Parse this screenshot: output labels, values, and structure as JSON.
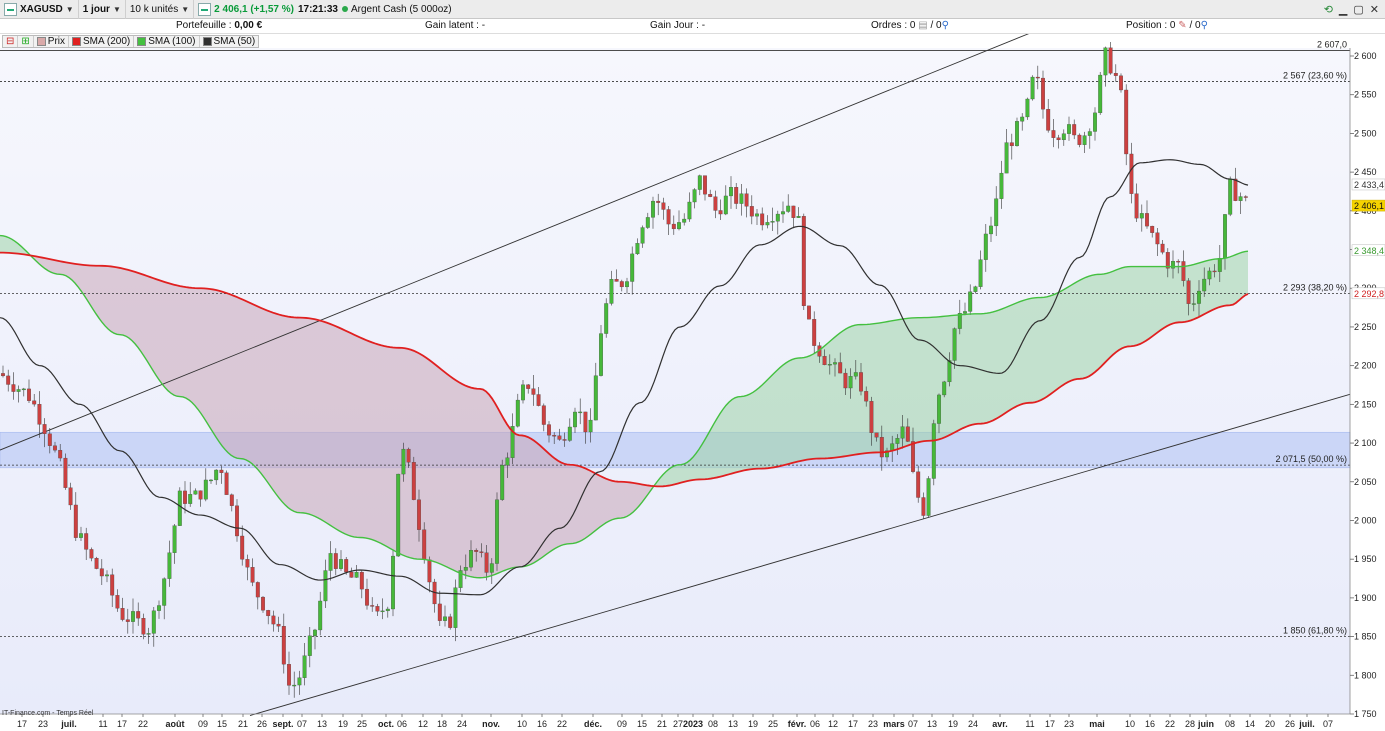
{
  "toolbar": {
    "symbol": "XAGUSD",
    "period": "1 jour",
    "units": "10 k unités",
    "price_change": "2 406,1 (+1,57 %)",
    "time": "17:21:33",
    "cash": "Argent Cash (5 000oz)"
  },
  "infobar": {
    "portefeuille_label": "Portefeuille :",
    "portefeuille_value": "0,00 €",
    "gain_latent": "Gain latent : -",
    "gain_jour": "Gain Jour : -",
    "ordres": "Ordres : 0",
    "ordres_sep": "/ 0",
    "position": "Position : 0",
    "position_sep": "/ 0"
  },
  "legend": {
    "prix": "Prix",
    "sma200": "SMA (200)",
    "sma100": "SMA (100)",
    "sma50": "SMA (50)"
  },
  "footer": "IT-Finance.com - Temps Réel",
  "colors": {
    "sma200": "#e02020",
    "sma100": "#44c040",
    "sma50": "#303030",
    "up_candle": "#46b83a",
    "down_candle": "#cc4040",
    "zone": "#b9c8f5",
    "bg": "#eef0fa"
  },
  "chart_data": {
    "type": "candlestick",
    "symbol": "XAGUSD",
    "ylim": [
      1740,
      2620
    ],
    "y_ticks": [
      "2 600",
      "2 550",
      "2 500",
      "2 450",
      "2 400",
      "2 350",
      "2 300",
      "2 250",
      "2 200",
      "2 150",
      "2 100",
      "2 050",
      "2 000",
      "1 950",
      "1 900",
      "1 850",
      "1 800",
      "1 750"
    ],
    "y_tick_values": [
      2600,
      2550,
      2500,
      2450,
      2400,
      2350,
      2300,
      2250,
      2200,
      2150,
      2100,
      2050,
      2000,
      1950,
      1900,
      1850,
      1800,
      1750
    ],
    "x_ticks": [
      "17",
      "23",
      "juil.",
      "11",
      "17",
      "22",
      "août",
      "09",
      "15",
      "21",
      "26",
      "sept.",
      "07",
      "13",
      "19",
      "25",
      "oct.",
      "06",
      "12",
      "18",
      "24",
      "nov.",
      "10",
      "16",
      "22",
      "déc.",
      "09",
      "15",
      "21",
      "27",
      "2023",
      "08",
      "13",
      "19",
      "25",
      "févr.",
      "06",
      "12",
      "17",
      "23",
      "mars",
      "07",
      "13",
      "19",
      "24",
      "avr.",
      "11",
      "17",
      "23",
      "mai",
      "10",
      "16",
      "22",
      "28",
      "juin",
      "08",
      "14",
      "20",
      "26",
      "juil.",
      "07"
    ],
    "bold_x_ticks": [
      "juil.",
      "août",
      "sept.",
      "oct.",
      "nov.",
      "déc.",
      "2023",
      "févr.",
      "mars",
      "avr.",
      "mai",
      "juin"
    ],
    "x_range": [
      0,
      1330
    ],
    "x_tick_positions": [
      22,
      43,
      69,
      103,
      122,
      143,
      175,
      203,
      222,
      243,
      262,
      283,
      302,
      322,
      343,
      362,
      386,
      402,
      423,
      442,
      462,
      491,
      522,
      542,
      562,
      593,
      622,
      642,
      662,
      678,
      693,
      713,
      733,
      753,
      773,
      797,
      815,
      833,
      853,
      873,
      894,
      913,
      932,
      953,
      973,
      1000,
      1030,
      1050,
      1069,
      1097,
      1130,
      1150,
      1170,
      1190,
      1206,
      1230,
      1250,
      1270,
      1290,
      1307,
      1328
    ],
    "fib_levels": [
      {
        "value": 2607.0,
        "label": "2 607,0"
      },
      {
        "value": 2567,
        "label": "2 567 (23,60 %)"
      },
      {
        "value": 2293,
        "label": "2 293 (38,20 %)"
      },
      {
        "value": 2071.5,
        "label": "2 071,5 (50,00 %)"
      },
      {
        "value": 1850,
        "label": "1 850 (61,80 %)"
      }
    ],
    "zone": {
      "y_top": 2114,
      "y_bottom": 2068
    },
    "last_values": [
      {
        "name": "SMA (50)",
        "value": "2 433,4"
      },
      {
        "name": "Prix",
        "value": "2 406,1"
      },
      {
        "name": "SMA (100)",
        "value": "2 348,4"
      },
      {
        "name": "SMA (200)",
        "value": "2 292,8"
      }
    ],
    "trendlines": [
      {
        "x": [
          0,
          1050
        ],
        "y": [
          2091,
          2640
        ]
      },
      {
        "x": [
          250,
          1350
        ],
        "y": [
          1748,
          2163
        ]
      }
    ],
    "sma200": {
      "x": [
        0,
        100,
        200,
        300,
        400,
        480,
        520,
        570,
        620,
        660,
        700,
        760,
        820,
        880,
        930,
        980,
        1030,
        1080,
        1130,
        1180,
        1230,
        1250
      ],
      "y": [
        2346,
        2329,
        2300,
        2262,
        2223,
        2170,
        2110,
        2072,
        2050,
        2044,
        2053,
        2067,
        2080,
        2088,
        2103,
        2125,
        2152,
        2183,
        2225,
        2256,
        2278,
        2293
      ]
    },
    "sma100": {
      "x": [
        0,
        60,
        120,
        180,
        240,
        300,
        360,
        420,
        480,
        520,
        570,
        620,
        680,
        740,
        800,
        860,
        920,
        980,
        1040,
        1100,
        1130,
        1180,
        1220,
        1250
      ],
      "y": [
        2368,
        2318,
        2240,
        2160,
        2080,
        2010,
        1978,
        1950,
        1926,
        1940,
        1970,
        2003,
        2072,
        2160,
        2210,
        2253,
        2262,
        2267,
        2288,
        2318,
        2328,
        2328,
        2338,
        2348
      ]
    },
    "sma50": {
      "x": [
        0,
        40,
        80,
        120,
        160,
        200,
        240,
        280,
        320,
        360,
        400,
        440,
        480,
        520,
        560,
        600,
        640,
        680,
        720,
        760,
        800,
        840,
        880,
        920,
        960,
        1000,
        1040,
        1080,
        1110,
        1140,
        1170,
        1200,
        1230,
        1250
      ],
      "y": [
        2262,
        2200,
        2150,
        2090,
        2030,
        2007,
        1990,
        1943,
        1923,
        1936,
        1928,
        1906,
        1904,
        1940,
        1990,
        2063,
        2152,
        2250,
        2303,
        2356,
        2380,
        2355,
        2304,
        2233,
        2200,
        2190,
        2258,
        2340,
        2418,
        2462,
        2466,
        2460,
        2441,
        2433
      ]
    },
    "price_path": {
      "x": [
        0,
        15,
        30,
        45,
        60,
        75,
        90,
        105,
        120,
        135,
        150,
        165,
        180,
        195,
        210,
        220,
        235,
        250,
        265,
        280,
        290,
        300,
        315,
        330,
        345,
        360,
        375,
        390,
        400,
        410,
        420,
        430,
        440,
        450,
        460,
        475,
        490,
        500,
        510,
        520,
        530,
        545,
        560,
        575,
        590,
        600,
        610,
        625,
        640,
        655,
        670,
        685,
        700,
        715,
        730,
        745,
        760,
        775,
        790,
        800,
        805,
        815,
        830,
        845,
        860,
        875,
        885,
        895,
        905,
        915,
        925,
        935,
        945,
        955,
        965,
        975,
        985,
        995,
        1005,
        1015,
        1025,
        1035,
        1045,
        1055,
        1065,
        1075,
        1085,
        1095,
        1105,
        1110,
        1120,
        1130,
        1140,
        1150,
        1160,
        1170,
        1180,
        1190,
        1200,
        1210,
        1220,
        1230,
        1240,
        1250
      ],
      "y": [
        2190,
        2175,
        2160,
        2120,
        2070,
        1990,
        1950,
        1925,
        1880,
        1870,
        1860,
        1930,
        2030,
        2030,
        2050,
        2075,
        2000,
        1920,
        1890,
        1850,
        1780,
        1800,
        1860,
        1960,
        1930,
        1920,
        1870,
        1900,
        2100,
        2060,
        1990,
        1920,
        1860,
        1870,
        1940,
        1960,
        1930,
        2060,
        2100,
        2160,
        2180,
        2120,
        2100,
        2150,
        2110,
        2240,
        2300,
        2310,
        2380,
        2420,
        2380,
        2390,
        2440,
        2400,
        2420,
        2410,
        2390,
        2400,
        2410,
        2380,
        2260,
        2230,
        2200,
        2180,
        2180,
        2100,
        2080,
        2100,
        2120,
        2040,
        2010,
        2150,
        2190,
        2250,
        2270,
        2300,
        2360,
        2400,
        2480,
        2500,
        2520,
        2580,
        2520,
        2500,
        2510,
        2490,
        2500,
        2530,
        2600,
        2590,
        2560,
        2420,
        2390,
        2370,
        2350,
        2330,
        2330,
        2270,
        2310,
        2320,
        2340,
        2430,
        2420,
        2406
      ]
    }
  }
}
